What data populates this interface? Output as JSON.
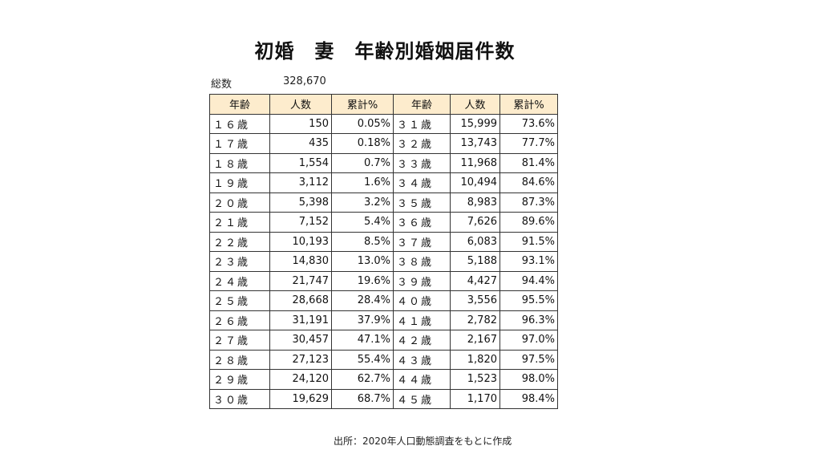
{
  "title": "初婚　妻　年齢別婚姻届件数",
  "total_label": "総数",
  "total_value": "328,670",
  "headers": [
    "年齢",
    "人数",
    "累計%",
    "年齢",
    "人数",
    "累計%"
  ],
  "rows": [
    [
      "１６歳",
      "150",
      "0.05%",
      "３１歳",
      "15,999",
      "73.6%"
    ],
    [
      "１７歳",
      "435",
      "0.18%",
      "３２歳",
      "13,743",
      "77.7%"
    ],
    [
      "１８歳",
      "1,554",
      "0.7%",
      "３３歳",
      "11,968",
      "81.4%"
    ],
    [
      "１９歳",
      "3,112",
      "1.6%",
      "３４歳",
      "10,494",
      "84.6%"
    ],
    [
      "２０歳",
      "5,398",
      "3.2%",
      "３５歳",
      "8,983",
      "87.3%"
    ],
    [
      "２１歳",
      "7,152",
      "5.4%",
      "３６歳",
      "7,626",
      "89.6%"
    ],
    [
      "２２歳",
      "10,193",
      "8.5%",
      "３７歳",
      "6,083",
      "91.5%"
    ],
    [
      "２３歳",
      "14,830",
      "13.0%",
      "３８歳",
      "5,188",
      "93.1%"
    ],
    [
      "２４歳",
      "21,747",
      "19.6%",
      "３９歳",
      "4,427",
      "94.4%"
    ],
    [
      "２５歳",
      "28,668",
      "28.4%",
      "４０歳",
      "3,556",
      "95.5%"
    ],
    [
      "２６歳",
      "31,191",
      "37.9%",
      "４１歳",
      "2,782",
      "96.3%"
    ],
    [
      "２７歳",
      "30,457",
      "47.1%",
      "４２歳",
      "2,167",
      "97.0%"
    ],
    [
      "２８歳",
      "27,123",
      "55.4%",
      "４３歳",
      "1,820",
      "97.5%"
    ],
    [
      "２９歳",
      "24,120",
      "62.7%",
      "４４歳",
      "1,523",
      "98.0%"
    ],
    [
      "３０歳",
      "19,629",
      "68.7%",
      "４５歳",
      "1,170",
      "98.4%"
    ]
  ],
  "source": "出所：2020年人口動態調査をもとに作成",
  "colors": {
    "header_bg": "#fdeccd",
    "border": "#333333"
  }
}
